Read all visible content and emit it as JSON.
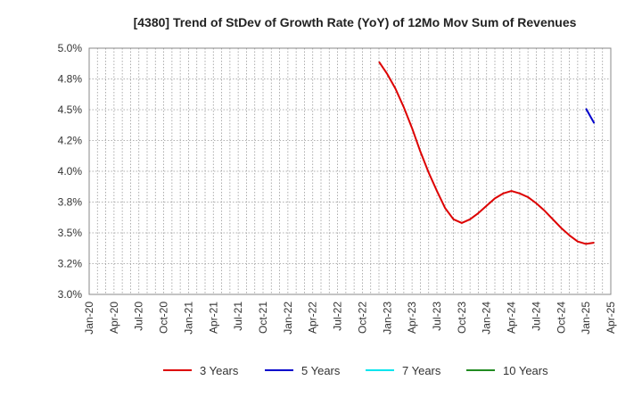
{
  "chart_data": {
    "type": "line",
    "title": "[4380]  Trend of StDev of Growth Rate (YoY) of 12Mo Mov Sum of Revenues",
    "xlabel": "",
    "ylabel": "",
    "x_tick_labels": [
      "Jan-20",
      "Apr-20",
      "Jul-20",
      "Oct-20",
      "Jan-21",
      "Apr-21",
      "Jul-21",
      "Oct-21",
      "Jan-22",
      "Apr-22",
      "Jul-22",
      "Oct-22",
      "Jan-23",
      "Apr-23",
      "Jul-23",
      "Oct-23",
      "Jan-24",
      "Apr-24",
      "Jul-24",
      "Oct-24",
      "Jan-25",
      "Apr-25"
    ],
    "y_tick_labels": [
      "5.0%",
      "4.8%",
      "4.5%",
      "4.2%",
      "4.0%",
      "3.8%",
      "3.5%",
      "3.2%",
      "3.0%"
    ],
    "ylim": [
      3.0,
      5.0
    ],
    "y_tick_values": [
      5.0,
      4.75,
      4.5,
      4.25,
      4.0,
      3.75,
      3.5,
      3.25,
      3.0
    ],
    "grid": true,
    "legend_position": "bottom",
    "series": [
      {
        "name": "3 Years",
        "color": "#dd0000",
        "points": [
          [
            "2022-12",
            4.89
          ],
          [
            "2023-01",
            4.79
          ],
          [
            "2023-02",
            4.67
          ],
          [
            "2023-03",
            4.52
          ],
          [
            "2023-04",
            4.35
          ],
          [
            "2023-05",
            4.16
          ],
          [
            "2023-06",
            3.99
          ],
          [
            "2023-07",
            3.84
          ],
          [
            "2023-08",
            3.7
          ],
          [
            "2023-09",
            3.61
          ],
          [
            "2023-10",
            3.58
          ],
          [
            "2023-11",
            3.61
          ],
          [
            "2023-12",
            3.66
          ],
          [
            "2024-01",
            3.72
          ],
          [
            "2024-02",
            3.78
          ],
          [
            "2024-03",
            3.82
          ],
          [
            "2024-04",
            3.84
          ],
          [
            "2024-05",
            3.82
          ],
          [
            "2024-06",
            3.79
          ],
          [
            "2024-07",
            3.74
          ],
          [
            "2024-08",
            3.68
          ],
          [
            "2024-09",
            3.61
          ],
          [
            "2024-10",
            3.54
          ],
          [
            "2024-11",
            3.48
          ],
          [
            "2024-12",
            3.43
          ],
          [
            "2025-01",
            3.41
          ],
          [
            "2025-02",
            3.42
          ]
        ]
      },
      {
        "name": "5 Years",
        "color": "#0000cc",
        "points": [
          [
            "2025-01",
            4.51
          ],
          [
            "2025-02",
            4.39
          ]
        ]
      },
      {
        "name": "7 Years",
        "color": "#00e5ee",
        "points": []
      },
      {
        "name": "10 Years",
        "color": "#228b22",
        "points": []
      }
    ]
  }
}
